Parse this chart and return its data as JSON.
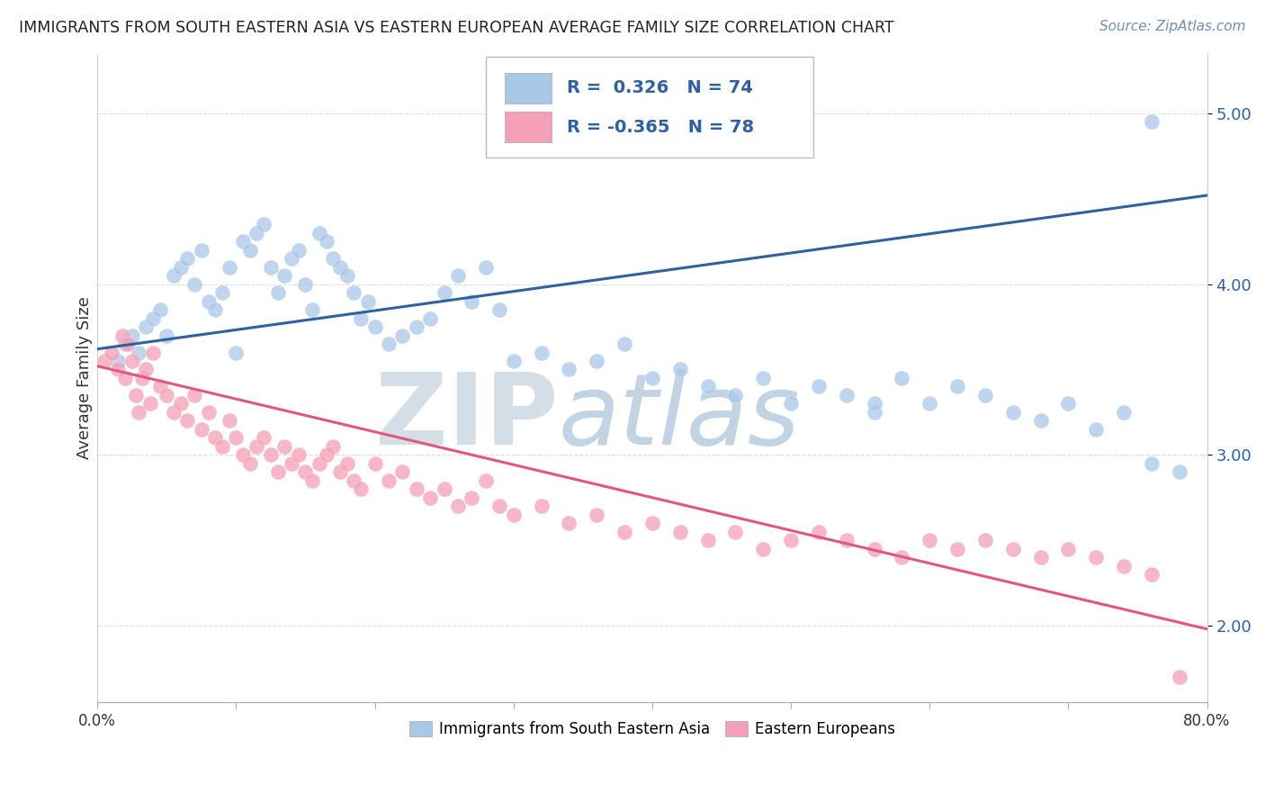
{
  "title": "IMMIGRANTS FROM SOUTH EASTERN ASIA VS EASTERN EUROPEAN AVERAGE FAMILY SIZE CORRELATION CHART",
  "source": "Source: ZipAtlas.com",
  "ylabel": "Average Family Size",
  "ylim": [
    1.55,
    5.35
  ],
  "xlim": [
    0.0,
    80.0
  ],
  "yticks_right": [
    2.0,
    3.0,
    4.0,
    5.0
  ],
  "blue_R": 0.326,
  "blue_N": 74,
  "pink_R": -0.365,
  "pink_N": 78,
  "blue_color": "#a8c8e8",
  "pink_color": "#f4a0b8",
  "blue_line_color": "#3060a0",
  "pink_line_color": "#e05880",
  "watermark_zip": "#b0c4d8",
  "watermark_atlas": "#98b8d0",
  "background_color": "#ffffff",
  "grid_color": "#dddddd",
  "blue_trend_y0": 3.62,
  "blue_trend_y1": 4.52,
  "pink_trend_y0": 3.52,
  "pink_trend_y1": 1.98,
  "blue_scatter_x": [
    1.5,
    2.0,
    2.5,
    3.0,
    3.5,
    4.0,
    4.5,
    5.0,
    5.5,
    6.0,
    6.5,
    7.0,
    7.5,
    8.0,
    8.5,
    9.0,
    9.5,
    10.0,
    10.5,
    11.0,
    11.5,
    12.0,
    12.5,
    13.0,
    13.5,
    14.0,
    14.5,
    15.0,
    15.5,
    16.0,
    16.5,
    17.0,
    17.5,
    18.0,
    18.5,
    19.0,
    19.5,
    20.0,
    21.0,
    22.0,
    23.0,
    24.0,
    25.0,
    26.0,
    27.0,
    28.0,
    29.0,
    30.0,
    32.0,
    34.0,
    36.0,
    38.0,
    40.0,
    42.0,
    44.0,
    46.0,
    48.0,
    50.0,
    52.0,
    54.0,
    56.0,
    58.0,
    60.0,
    62.0,
    64.0,
    66.0,
    68.0,
    70.0,
    72.0,
    74.0,
    76.0,
    78.0,
    56.0,
    76.0
  ],
  "blue_scatter_y": [
    3.55,
    3.65,
    3.7,
    3.6,
    3.75,
    3.8,
    3.85,
    3.7,
    4.05,
    4.1,
    4.15,
    4.0,
    4.2,
    3.9,
    3.85,
    3.95,
    4.1,
    3.6,
    4.25,
    4.2,
    4.3,
    4.35,
    4.1,
    3.95,
    4.05,
    4.15,
    4.2,
    4.0,
    3.85,
    4.3,
    4.25,
    4.15,
    4.1,
    4.05,
    3.95,
    3.8,
    3.9,
    3.75,
    3.65,
    3.7,
    3.75,
    3.8,
    3.95,
    4.05,
    3.9,
    4.1,
    3.85,
    3.55,
    3.6,
    3.5,
    3.55,
    3.65,
    3.45,
    3.5,
    3.4,
    3.35,
    3.45,
    3.3,
    3.4,
    3.35,
    3.25,
    3.45,
    3.3,
    3.4,
    3.35,
    3.25,
    3.2,
    3.3,
    3.15,
    3.25,
    2.95,
    2.9,
    3.3,
    4.95
  ],
  "pink_scatter_x": [
    0.5,
    1.0,
    1.5,
    1.8,
    2.0,
    2.2,
    2.5,
    2.8,
    3.0,
    3.2,
    3.5,
    3.8,
    4.0,
    4.5,
    5.0,
    5.5,
    6.0,
    6.5,
    7.0,
    7.5,
    8.0,
    8.5,
    9.0,
    9.5,
    10.0,
    10.5,
    11.0,
    11.5,
    12.0,
    12.5,
    13.0,
    13.5,
    14.0,
    14.5,
    15.0,
    15.5,
    16.0,
    16.5,
    17.0,
    17.5,
    18.0,
    18.5,
    19.0,
    20.0,
    21.0,
    22.0,
    23.0,
    24.0,
    25.0,
    26.0,
    27.0,
    28.0,
    29.0,
    30.0,
    32.0,
    34.0,
    36.0,
    38.0,
    40.0,
    42.0,
    44.0,
    46.0,
    48.0,
    50.0,
    52.0,
    54.0,
    56.0,
    58.0,
    60.0,
    62.0,
    64.0,
    66.0,
    68.0,
    70.0,
    72.0,
    74.0,
    76.0,
    78.0
  ],
  "pink_scatter_y": [
    3.55,
    3.6,
    3.5,
    3.7,
    3.45,
    3.65,
    3.55,
    3.35,
    3.25,
    3.45,
    3.5,
    3.3,
    3.6,
    3.4,
    3.35,
    3.25,
    3.3,
    3.2,
    3.35,
    3.15,
    3.25,
    3.1,
    3.05,
    3.2,
    3.1,
    3.0,
    2.95,
    3.05,
    3.1,
    3.0,
    2.9,
    3.05,
    2.95,
    3.0,
    2.9,
    2.85,
    2.95,
    3.0,
    3.05,
    2.9,
    2.95,
    2.85,
    2.8,
    2.95,
    2.85,
    2.9,
    2.8,
    2.75,
    2.8,
    2.7,
    2.75,
    2.85,
    2.7,
    2.65,
    2.7,
    2.6,
    2.65,
    2.55,
    2.6,
    2.55,
    2.5,
    2.55,
    2.45,
    2.5,
    2.55,
    2.5,
    2.45,
    2.4,
    2.5,
    2.45,
    2.5,
    2.45,
    2.4,
    2.45,
    2.4,
    2.35,
    2.3,
    1.7
  ]
}
